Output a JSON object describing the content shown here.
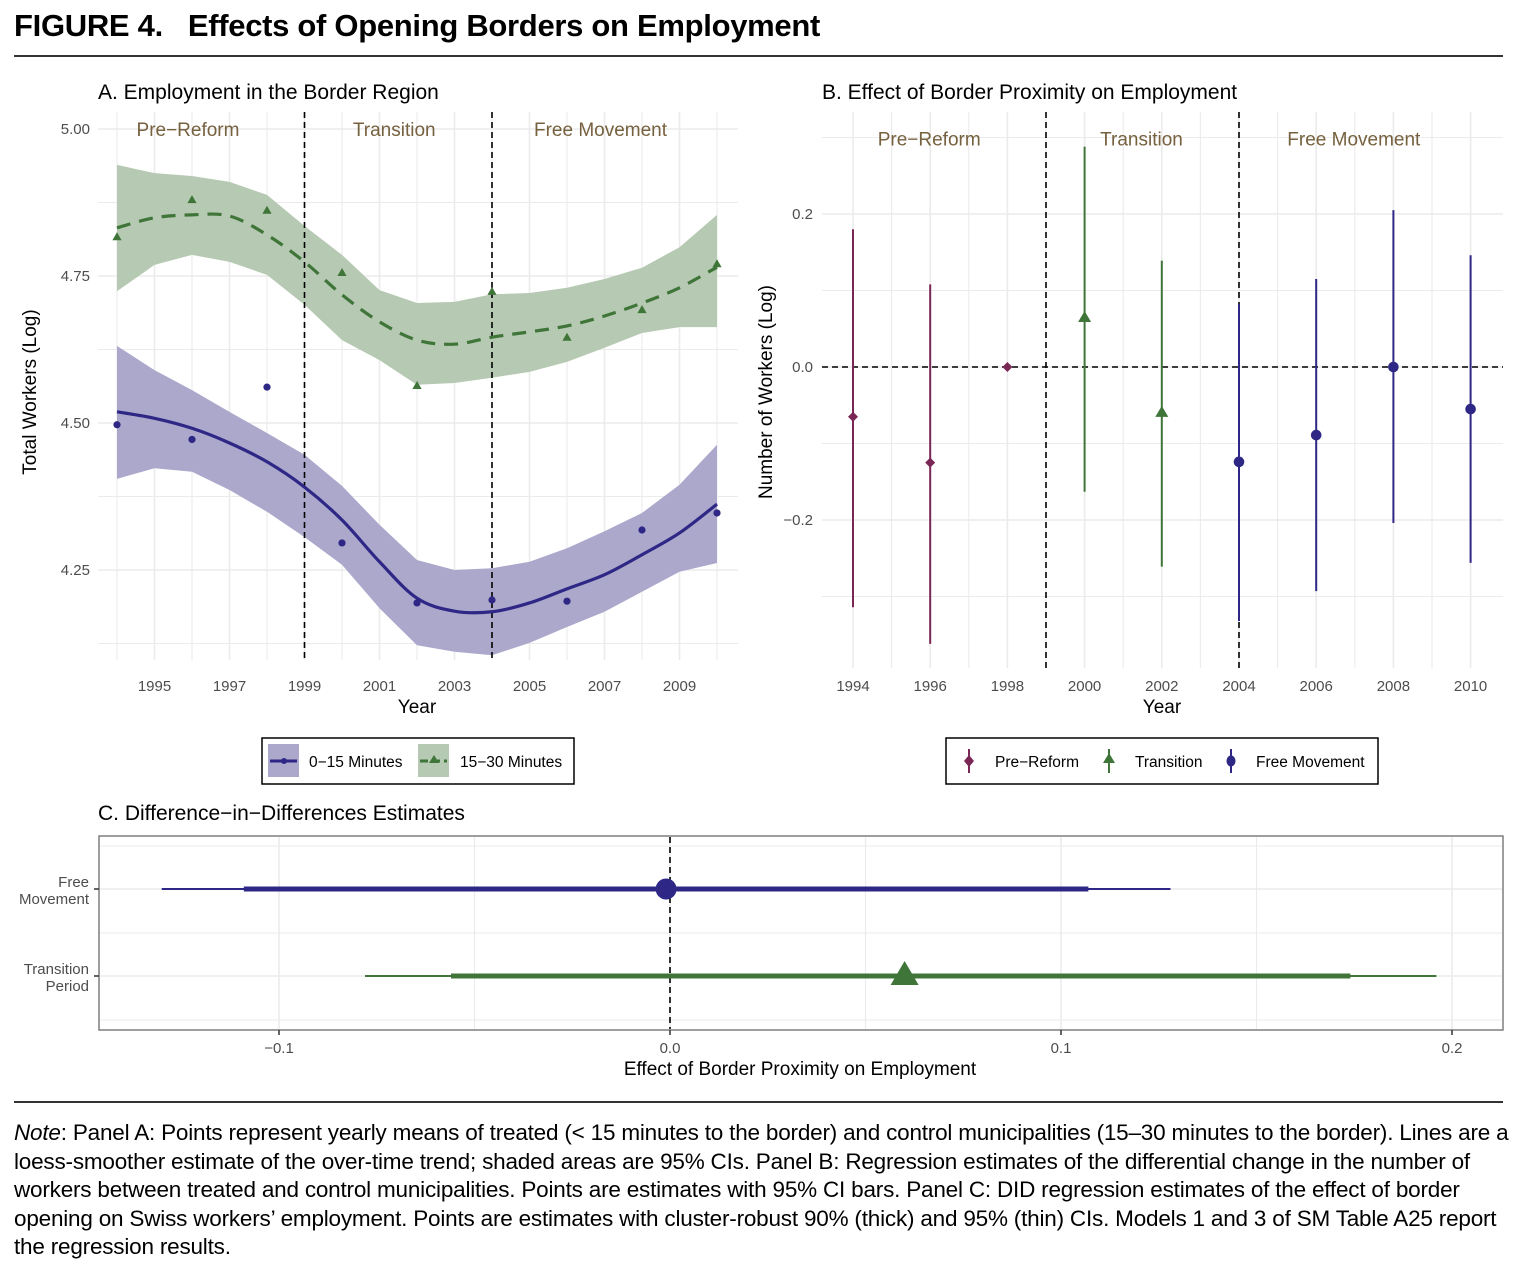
{
  "figure": {
    "label": "FIGURE 4.",
    "title": "Effects of Opening Borders on Employment"
  },
  "note": {
    "prefix": "Note",
    "text": ": Panel A: Points represent yearly means of treated (< 15 minutes to the border) and control municipalities (15–30 minutes to the border). Lines are a loess-smoother estimate of the over-time trend; shaded areas are 95% CIs. Panel B: Regression estimates of the differential change in the number of workers between treated and control municipalities. Points are estimates with 95% CI bars. Panel C: DID regression estimates of the effect of border opening on Swiss workers’ employment. Points are estimates with cluster-robust 90% (thick) and 95% (thin) CIs. Models 1 and 3 of SM Table A25 report the regression results."
  },
  "colors": {
    "blue": "#2e2785",
    "blue_band": "#aba8cc",
    "green": "#3f7539",
    "green_band": "#b6c9b2",
    "maroon": "#7a2756",
    "period_text": "#76613f",
    "grid": "#ebebeb"
  },
  "chart_data": [
    {
      "id": "A",
      "type": "line",
      "title": "A. Employment in the Border Region",
      "xlabel": "Year",
      "ylabel": "Total Workers (Log)",
      "xlim": [
        1993.8,
        2010.5
      ],
      "ylim": [
        4.07,
        5.02
      ],
      "xticks": [
        1995,
        1997,
        1999,
        2001,
        2003,
        2005,
        2007,
        2009
      ],
      "yticks": [
        4.25,
        4.5,
        4.75,
        5.0
      ],
      "ytick_labels": [
        "4.25",
        "4.50",
        "4.75",
        "5.00"
      ],
      "grid": true,
      "vlines": [
        1999,
        2004
      ],
      "period_labels": [
        {
          "label": "Pre−Reform",
          "x": 1996
        },
        {
          "label": "Transition",
          "x": 2001.5
        },
        {
          "label": "Free Movement",
          "x": 2007
        }
      ],
      "period_label_y": 5.0,
      "x": [
        1994,
        1995,
        1996,
        1997,
        1998,
        1999,
        2000,
        2001,
        2002,
        2003,
        2004,
        2005,
        2006,
        2007,
        2008,
        2009,
        2010
      ],
      "series": [
        {
          "name": "0−15 Minutes",
          "color_key": "blue",
          "marker": "circle",
          "linestyle": "solid",
          "points": {
            "x": [
              1994,
              1996,
              1998,
              2000,
              2002,
              2004,
              2006,
              2008,
              2010
            ],
            "y": [
              4.497,
              4.472,
              4.561,
              4.296,
              4.194,
              4.199,
              4.197,
              4.318,
              4.347
            ]
          },
          "fit": [
            4.519,
            4.508,
            4.491,
            4.466,
            4.434,
            4.391,
            4.335,
            4.264,
            4.202,
            4.18,
            4.179,
            4.194,
            4.218,
            4.242,
            4.276,
            4.313,
            4.362
          ],
          "upper": [
            4.631,
            4.59,
            4.556,
            4.519,
            4.483,
            4.446,
            4.393,
            4.327,
            4.267,
            4.25,
            4.253,
            4.264,
            4.287,
            4.316,
            4.347,
            4.395,
            4.463
          ],
          "lower": [
            4.405,
            4.423,
            4.417,
            4.386,
            4.349,
            4.306,
            4.259,
            4.185,
            4.122,
            4.111,
            4.105,
            4.126,
            4.153,
            4.179,
            4.213,
            4.247,
            4.262
          ]
        },
        {
          "name": "15−30 Minutes",
          "color_key": "green",
          "marker": "triangle",
          "linestyle": "dashed",
          "points": {
            "x": [
              1994,
              1996,
              1998,
              2000,
              2002,
              2004,
              2006,
              2008,
              2010
            ],
            "y": [
              4.816,
              4.879,
              4.861,
              4.755,
              4.563,
              4.723,
              4.645,
              4.692,
              4.77
            ]
          },
          "fit": [
            4.832,
            4.849,
            4.854,
            4.852,
            4.82,
            4.774,
            4.718,
            4.672,
            4.641,
            4.634,
            4.646,
            4.655,
            4.665,
            4.682,
            4.704,
            4.73,
            4.765
          ],
          "upper": [
            4.939,
            4.925,
            4.92,
            4.91,
            4.888,
            4.835,
            4.786,
            4.726,
            4.704,
            4.706,
            4.719,
            4.721,
            4.73,
            4.745,
            4.764,
            4.799,
            4.854
          ],
          "lower": [
            4.724,
            4.769,
            4.786,
            4.774,
            4.752,
            4.701,
            4.641,
            4.607,
            4.565,
            4.568,
            4.577,
            4.587,
            4.604,
            4.628,
            4.653,
            4.663,
            4.663
          ]
        }
      ],
      "legend": {
        "placement": "bottom",
        "items": [
          "0−15 Minutes",
          "15−30 Minutes"
        ]
      }
    },
    {
      "id": "B",
      "type": "scatter",
      "title": "B. Effect of Border Proximity on Employment",
      "xlabel": "Year",
      "ylabel": "Number of Workers (Log)",
      "xlim": [
        1993.2,
        2010.6
      ],
      "ylim": [
        -0.385,
        0.33
      ],
      "xticks": [
        1994,
        1996,
        1998,
        2000,
        2002,
        2004,
        2006,
        2008,
        2010
      ],
      "yticks": [
        -0.2,
        0.0,
        0.2
      ],
      "ytick_labels": [
        "−0.2",
        "0.0",
        "0.2"
      ],
      "grid": true,
      "vlines": [
        1999,
        2004
      ],
      "hline": 0,
      "period_labels": [
        {
          "label": "Pre−Reform",
          "x": 1996
        },
        {
          "label": "Transition",
          "x": 2001.5
        },
        {
          "label": "Free Movement",
          "x": 2007
        }
      ],
      "period_label_y": 0.3,
      "series": [
        {
          "name": "Pre−Reform",
          "color_key": "maroon",
          "marker": "diamond",
          "x": [
            1994,
            1996,
            1998
          ],
          "estimate": [
            -0.065,
            -0.125,
            0.0
          ],
          "ci_low": [
            -0.314,
            -0.362,
            null
          ],
          "ci_high": [
            0.18,
            0.108,
            null
          ]
        },
        {
          "name": "Transition",
          "color_key": "green",
          "marker": "triangle",
          "x": [
            2000,
            2002
          ],
          "estimate": [
            0.064,
            -0.06
          ],
          "ci_low": [
            -0.163,
            -0.261
          ],
          "ci_high": [
            0.288,
            0.139
          ]
        },
        {
          "name": "Free Movement",
          "color_key": "blue",
          "marker": "circle",
          "x": [
            2004,
            2006,
            2008,
            2010
          ],
          "estimate": [
            -0.124,
            -0.089,
            0.0,
            -0.055
          ],
          "ci_low": [
            -0.332,
            -0.293,
            -0.204,
            -0.256
          ],
          "ci_high": [
            0.082,
            0.115,
            0.205,
            0.146
          ]
        }
      ],
      "legend": {
        "placement": "bottom",
        "items": [
          "Pre−Reform",
          "Transition",
          "Free Movement"
        ]
      }
    },
    {
      "id": "C",
      "type": "scatter",
      "title": "C. Difference−in−Differences Estimates",
      "xlabel": "Effect of Border Proximity on Employment",
      "ylabel": "",
      "xlim": [
        -0.146,
        0.213
      ],
      "xticks": [
        -0.1,
        0.0,
        0.1,
        0.2
      ],
      "xtick_labels": [
        "−0.1",
        "0.0",
        "0.1",
        "0.2"
      ],
      "grid": true,
      "vline": 0,
      "categories": [
        {
          "line1": "Free",
          "line2": "Movement"
        },
        {
          "line1": "Transition",
          "line2": "Period"
        }
      ],
      "series": [
        {
          "name": "Free Movement",
          "color_key": "blue",
          "marker": "circle",
          "estimate": -0.001,
          "ci90": [
            -0.109,
            0.107
          ],
          "ci95": [
            -0.13,
            0.128
          ]
        },
        {
          "name": "Transition Period",
          "color_key": "green",
          "marker": "triangle",
          "estimate": 0.06,
          "ci90": [
            -0.056,
            0.174
          ],
          "ci95": [
            -0.078,
            0.196
          ]
        }
      ]
    }
  ]
}
